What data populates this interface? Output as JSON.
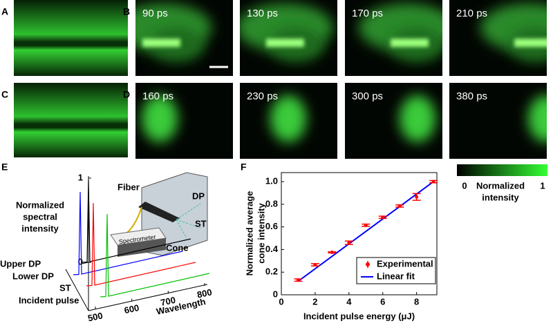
{
  "panels": {
    "a": "A",
    "b": "B",
    "c": "C",
    "d": "D",
    "e": "E",
    "f": "F"
  },
  "b_times": [
    "90 ps",
    "130 ps",
    "170 ps",
    "210 ps"
  ],
  "d_times": [
    "160 ps",
    "230 ps",
    "300 ps",
    "380 ps"
  ],
  "colorbar": {
    "min": "0",
    "max": "1",
    "label": [
      "Normalized",
      "intensity"
    ]
  },
  "panel_e": {
    "zlabel": [
      "Normalized",
      "spectral",
      "intensity"
    ],
    "zticks": [
      0,
      1
    ],
    "xlabel": "Wavelength",
    "xticks": [
      500,
      600,
      700,
      800
    ],
    "series": [
      {
        "name": "Upper DP",
        "color": "#000000"
      },
      {
        "name": "Lower DP",
        "color": "#0000ff"
      },
      {
        "name": "ST",
        "color": "#ff0000"
      },
      {
        "name": "Incident pulse",
        "color": "#00c000"
      }
    ],
    "inset": {
      "fiber": "Fiber",
      "dp": "DP",
      "st": "ST",
      "cone": "Cone",
      "spectrometer": "Spectrometer"
    }
  },
  "chart_data": {
    "type": "scatter",
    "xlabel": "Incident pulse energy (μJ)",
    "ylabel": [
      "Normalized  average",
      "cone intensity"
    ],
    "xlim": [
      0,
      9.2
    ],
    "ylim": [
      0,
      1.08
    ],
    "xticks": [
      0,
      2,
      4,
      6,
      8
    ],
    "yticks": [
      0,
      0.2,
      0.4,
      0.6,
      0.8,
      {
        "value": 1,
        "label": "1.0"
      }
    ],
    "series": [
      {
        "name": "Experimental",
        "color": "#ff0000",
        "x": [
          1,
          2,
          3,
          4,
          5,
          6,
          7,
          8,
          9
        ],
        "values": [
          0.13,
          0.265,
          0.375,
          0.46,
          0.615,
          0.685,
          0.785,
          0.865,
          1.0
        ],
        "errors": [
          0.01,
          0.01,
          0.005,
          0.015,
          0.01,
          0.01,
          0.01,
          0.03,
          0.01
        ]
      },
      {
        "name": "Linear fit",
        "color": "#0000ff",
        "x": [
          1,
          9
        ],
        "values": [
          0.12,
          1.0
        ]
      }
    ]
  }
}
